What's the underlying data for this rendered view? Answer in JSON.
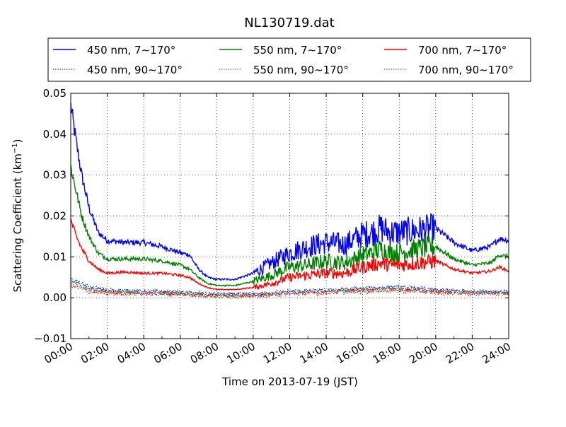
{
  "chart_data": {
    "type": "line",
    "title": "NL130719.dat",
    "xlabel": "Time on 2013-07-19 (JST)",
    "ylabel_main": "Scattering Coefficient (km",
    "ylabel_sup": "−1",
    "ylabel_close": ")",
    "xlim": [
      0,
      24
    ],
    "ylim": [
      -0.01,
      0.05
    ],
    "grid": true,
    "legend_position": "top",
    "x_ticks": [
      0,
      2,
      4,
      6,
      8,
      10,
      12,
      14,
      16,
      18,
      20,
      22,
      24
    ],
    "x_tick_labels": [
      "00:00",
      "02:00",
      "04:00",
      "06:00",
      "08:00",
      "10:00",
      "12:00",
      "14:00",
      "16:00",
      "18:00",
      "20:00",
      "22:00",
      "24:00"
    ],
    "y_ticks": [
      -0.01,
      0.0,
      0.01,
      0.02,
      0.03,
      0.04,
      0.05
    ],
    "y_tick_labels": [
      "−0.01",
      "0.00",
      "0.01",
      "0.02",
      "0.03",
      "0.04",
      "0.05"
    ],
    "series": [
      {
        "name": "450 nm, 7∼170°",
        "color": "#0000ff",
        "style": "solid",
        "x": [
          0,
          0.3,
          0.6,
          1.0,
          1.5,
          2,
          3,
          4,
          5,
          6,
          6.5,
          7,
          7.5,
          8,
          9,
          10,
          11,
          12,
          13,
          14,
          15,
          16,
          16.5,
          17,
          17.5,
          18,
          19,
          20,
          21,
          22,
          23,
          23.5,
          24
        ],
        "y": [
          0.047,
          0.038,
          0.03,
          0.022,
          0.016,
          0.014,
          0.0135,
          0.0135,
          0.0125,
          0.011,
          0.0105,
          0.007,
          0.005,
          0.0045,
          0.0045,
          0.006,
          0.0085,
          0.011,
          0.0125,
          0.0135,
          0.013,
          0.0155,
          0.016,
          0.017,
          0.016,
          0.016,
          0.0165,
          0.017,
          0.0135,
          0.0115,
          0.0125,
          0.0145,
          0.014
        ]
      },
      {
        "name": "550 nm, 7∼170°",
        "color": "#008000",
        "style": "solid",
        "x": [
          0,
          0.3,
          0.6,
          1.0,
          1.5,
          2,
          3,
          4,
          5,
          6,
          6.5,
          7,
          7.5,
          8,
          9,
          10,
          11,
          12,
          13,
          14,
          15,
          16,
          16.5,
          17,
          17.5,
          18,
          19,
          20,
          21,
          22,
          23,
          23.5,
          24
        ],
        "y": [
          0.032,
          0.026,
          0.02,
          0.015,
          0.011,
          0.0095,
          0.0095,
          0.0095,
          0.009,
          0.008,
          0.007,
          0.005,
          0.0035,
          0.003,
          0.003,
          0.004,
          0.0055,
          0.0075,
          0.008,
          0.009,
          0.0085,
          0.0105,
          0.011,
          0.012,
          0.011,
          0.011,
          0.012,
          0.0125,
          0.0095,
          0.008,
          0.0085,
          0.0105,
          0.01
        ]
      },
      {
        "name": "700 nm, 7∼170°",
        "color": "#ff0000",
        "style": "solid",
        "x": [
          0,
          0.3,
          0.6,
          1.0,
          1.5,
          2,
          3,
          4,
          5,
          6,
          6.5,
          7,
          7.5,
          8,
          9,
          10,
          11,
          12,
          13,
          14,
          15,
          16,
          16.5,
          17,
          17.5,
          18,
          19,
          20,
          21,
          22,
          23,
          23.5,
          24
        ],
        "y": [
          0.019,
          0.015,
          0.012,
          0.009,
          0.007,
          0.006,
          0.0063,
          0.006,
          0.006,
          0.0055,
          0.005,
          0.0035,
          0.0025,
          0.002,
          0.002,
          0.0025,
          0.0035,
          0.005,
          0.0055,
          0.006,
          0.006,
          0.0075,
          0.008,
          0.0085,
          0.008,
          0.008,
          0.0085,
          0.009,
          0.007,
          0.006,
          0.0065,
          0.0075,
          0.0065
        ]
      },
      {
        "name": "450 nm, 90∼170°",
        "color": "#0000ff",
        "style": "dotted",
        "x": [
          0,
          0.5,
          1,
          2,
          4,
          6,
          7,
          8,
          9,
          10,
          11,
          12,
          14,
          16,
          17,
          18,
          19,
          20,
          22,
          24
        ],
        "y": [
          0.0045,
          0.0035,
          0.0025,
          0.0018,
          0.0015,
          0.0013,
          0.001,
          0.0008,
          0.0008,
          0.0008,
          0.001,
          0.0015,
          0.0018,
          0.0022,
          0.0025,
          0.0025,
          0.0022,
          0.0018,
          0.0015,
          0.0015
        ]
      },
      {
        "name": "550 nm, 90∼170°",
        "color": "#008000",
        "style": "dotted",
        "x": [
          0,
          0.5,
          1,
          2,
          4,
          6,
          7,
          8,
          9,
          10,
          11,
          12,
          14,
          16,
          17,
          18,
          19,
          20,
          22,
          24
        ],
        "y": [
          0.0038,
          0.003,
          0.002,
          0.0015,
          0.0013,
          0.0011,
          0.0008,
          0.0006,
          0.0006,
          0.0007,
          0.0009,
          0.0013,
          0.0016,
          0.0019,
          0.0021,
          0.0021,
          0.0019,
          0.0016,
          0.0013,
          0.0013
        ]
      },
      {
        "name": "700 nm, 90∼170°",
        "color": "#ff0000",
        "style": "dotted",
        "x": [
          0,
          0.5,
          1,
          2,
          4,
          6,
          7,
          8,
          9,
          10,
          11,
          12,
          14,
          16,
          17,
          18,
          19,
          20,
          22,
          24
        ],
        "y": [
          0.003,
          0.0023,
          0.0015,
          0.0011,
          0.001,
          0.0009,
          0.0006,
          0.0004,
          0.0004,
          0.0005,
          0.0007,
          0.001,
          0.0013,
          0.0016,
          0.0018,
          0.0018,
          0.0016,
          0.0013,
          0.0011,
          0.0011
        ]
      }
    ]
  }
}
